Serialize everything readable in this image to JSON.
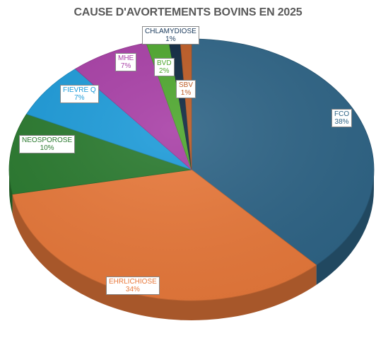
{
  "chart_data": {
    "type": "pie",
    "title": "CAUSE D'AVORTEMENTS BOVINS EN 2025",
    "slices": [
      {
        "label": "FCO",
        "value": 38,
        "pct_label": "38%",
        "color": "#2e6486"
      },
      {
        "label": "EHRLICHIOSE",
        "value": 34,
        "pct_label": "34%",
        "color": "#e8793b"
      },
      {
        "label": "NEOSPOROSE",
        "value": 10,
        "pct_label": "10%",
        "color": "#2a7a2f"
      },
      {
        "label": "FIEVRE Q",
        "value": 7,
        "pct_label": "7%",
        "color": "#1d9bd9"
      },
      {
        "label": "MHE",
        "value": 7,
        "pct_label": "7%",
        "color": "#a83fa6"
      },
      {
        "label": "BVD",
        "value": 2,
        "pct_label": "2%",
        "color": "#4ea72e"
      },
      {
        "label": "CHLAMYDIOSE",
        "value": 1,
        "pct_label": "1%",
        "color": "#0e2841"
      },
      {
        "label": "SBV",
        "value": 1,
        "pct_label": "1%",
        "color": "#bd5b24"
      }
    ],
    "legend": "none",
    "style": "3d-pie"
  }
}
